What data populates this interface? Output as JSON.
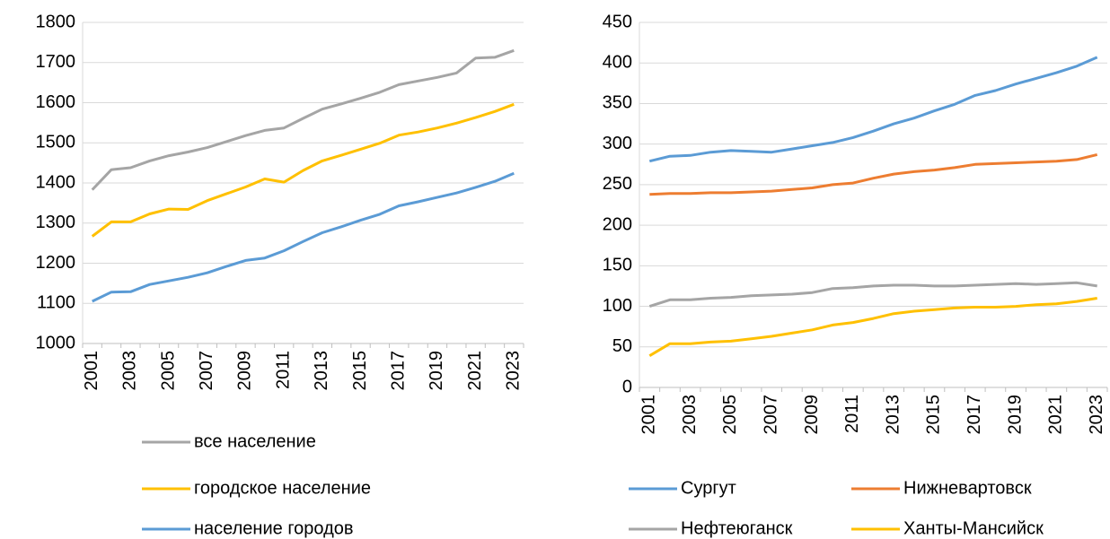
{
  "chart_data": [
    {
      "type": "line",
      "categories": [
        "2001",
        null,
        "2003",
        null,
        "2005",
        null,
        "2007",
        null,
        "2009",
        null,
        "2011",
        null,
        "2013",
        null,
        "2015",
        null,
        "2017",
        null,
        "2019",
        null,
        "2021",
        null,
        "2023"
      ],
      "ylim": [
        1000,
        1800
      ],
      "yticks": [
        1000,
        1100,
        1200,
        1300,
        1400,
        1500,
        1600,
        1700,
        1800
      ],
      "grid": true,
      "legend": "bottom",
      "series": [
        {
          "name": "все население",
          "color": "#a5a5a5",
          "values": [
            1383,
            1433,
            1438,
            1455,
            1468,
            1477,
            1488,
            1503,
            1518,
            1531,
            1537,
            1561,
            1584,
            1597,
            1611,
            1626,
            1645,
            1654,
            1663,
            1674,
            1711,
            1713,
            1730
          ]
        },
        {
          "name": "городское население",
          "color": "#ffc000",
          "values": [
            1267,
            1303,
            1303,
            1323,
            1335,
            1334,
            1356,
            1373,
            1390,
            1410,
            1402,
            1431,
            1455,
            1469,
            1484,
            1499,
            1519,
            1527,
            1537,
            1549,
            1563,
            1578,
            1596
          ]
        },
        {
          "name": "население городов",
          "color": "#5b9bd5",
          "values": [
            1105,
            1128,
            1129,
            1147,
            1156,
            1165,
            1176,
            1192,
            1207,
            1213,
            1231,
            1254,
            1276,
            1291,
            1307,
            1322,
            1343,
            1353,
            1364,
            1375,
            1389,
            1404,
            1424
          ]
        }
      ]
    },
    {
      "type": "line",
      "categories": [
        "2001",
        null,
        "2003",
        null,
        "2005",
        null,
        "2007",
        null,
        "2009",
        null,
        "2011",
        null,
        "2013",
        null,
        "2015",
        null,
        "2017",
        null,
        "2019",
        null,
        "2021",
        null,
        "2023"
      ],
      "ylim": [
        0,
        450
      ],
      "yticks": [
        0,
        50,
        100,
        150,
        200,
        250,
        300,
        350,
        400,
        450
      ],
      "grid": true,
      "legend": "bottom",
      "series": [
        {
          "name": "Сургут",
          "color": "#5b9bd5",
          "values": [
            279,
            285,
            286,
            290,
            292,
            291,
            290,
            294,
            298,
            302,
            308,
            316,
            325,
            332,
            341,
            349,
            360,
            366,
            374,
            381,
            388,
            396,
            407
          ]
        },
        {
          "name": "Нижневартовск",
          "color": "#ed7d31",
          "values": [
            238,
            239,
            239,
            240,
            240,
            241,
            242,
            244,
            246,
            250,
            252,
            258,
            263,
            266,
            268,
            271,
            275,
            276,
            277,
            278,
            279,
            281,
            287
          ]
        },
        {
          "name": "Нефтеюганск",
          "color": "#a5a5a5",
          "values": [
            100,
            108,
            108,
            110,
            111,
            113,
            114,
            115,
            117,
            122,
            123,
            125,
            126,
            126,
            125,
            125,
            126,
            127,
            128,
            127,
            128,
            129,
            125
          ]
        },
        {
          "name": "Ханты-Мансийск",
          "color": "#ffc000",
          "values": [
            39,
            54,
            54,
            56,
            57,
            60,
            63,
            67,
            71,
            77,
            80,
            85,
            91,
            94,
            96,
            98,
            99,
            99,
            100,
            102,
            103,
            106,
            110
          ]
        }
      ]
    }
  ]
}
